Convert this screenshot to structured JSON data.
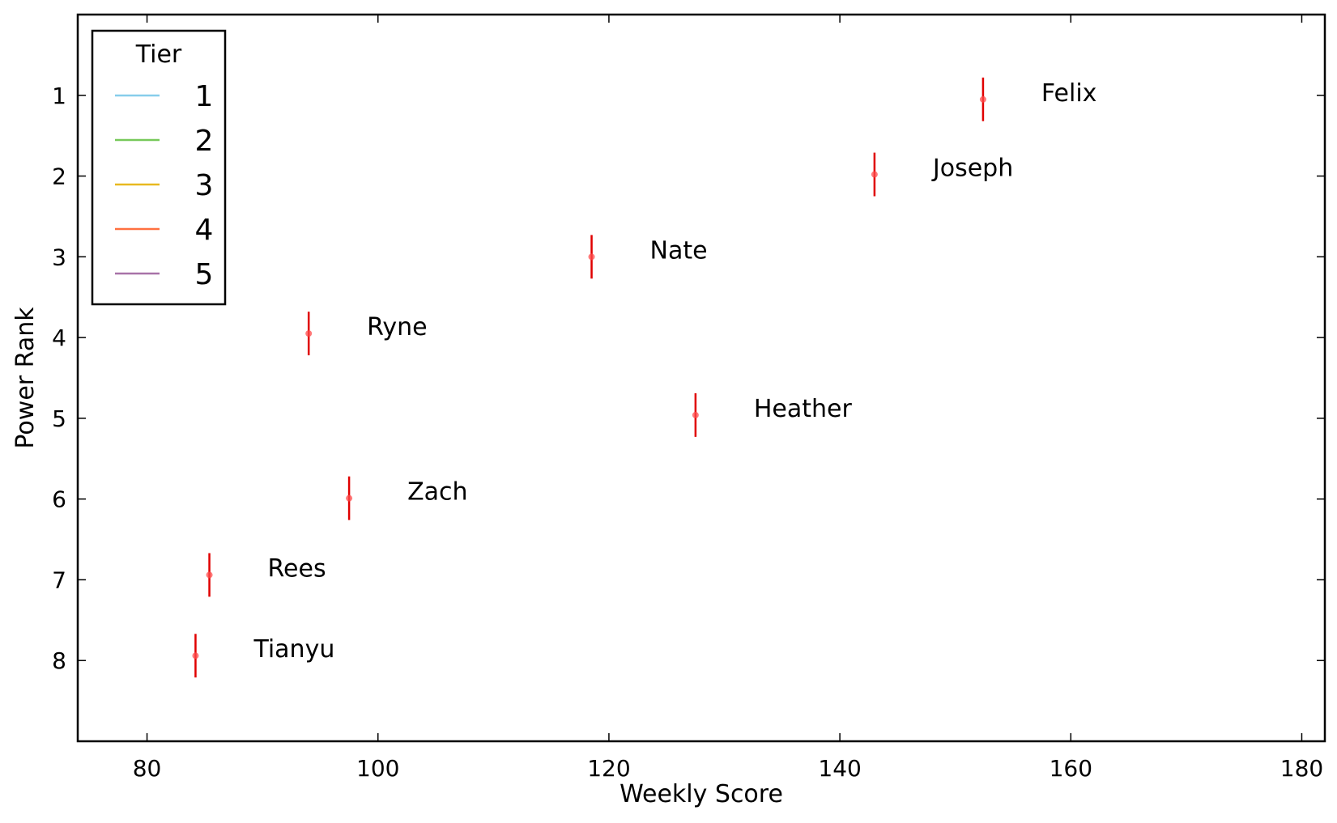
{
  "chart_data": {
    "type": "scatter",
    "title": "",
    "xlabel": "Weekly Score",
    "ylabel": "Power Rank",
    "xlim": [
      74,
      182
    ],
    "ylim": [
      9,
      0
    ],
    "y_inverted": true,
    "xticks": [
      "80",
      "100",
      "120",
      "140",
      "160",
      "180"
    ],
    "xtick_values": [
      80,
      100,
      120,
      140,
      160,
      180
    ],
    "yticks": [
      "1",
      "2",
      "3",
      "4",
      "5",
      "6",
      "7",
      "8"
    ],
    "ytick_values": [
      1,
      2,
      3,
      4,
      5,
      6,
      7,
      8
    ],
    "grid": false,
    "marker_color": "#ff4c4c",
    "errorbar_color": "#e00000",
    "points": [
      {
        "name": "Felix",
        "x": 152.4,
        "y": 1.05,
        "err": 0.27
      },
      {
        "name": "Joseph",
        "x": 143.0,
        "y": 1.98,
        "err": 0.27
      },
      {
        "name": "Nate",
        "x": 118.5,
        "y": 3.0,
        "err": 0.27
      },
      {
        "name": "Ryne",
        "x": 94.0,
        "y": 3.95,
        "err": 0.27
      },
      {
        "name": "Heather",
        "x": 127.5,
        "y": 4.96,
        "err": 0.27
      },
      {
        "name": "Zach",
        "x": 97.5,
        "y": 5.99,
        "err": 0.27
      },
      {
        "name": "Rees",
        "x": 85.4,
        "y": 6.94,
        "err": 0.27
      },
      {
        "name": "Tianyu",
        "x": 84.2,
        "y": 7.94,
        "err": 0.27
      }
    ],
    "legend": {
      "title": "Tier",
      "placement": "top-left",
      "entries": [
        {
          "label": "1",
          "color": "#87ceeb"
        },
        {
          "label": "2",
          "color": "#77c95a"
        },
        {
          "label": "3",
          "color": "#e8b920"
        },
        {
          "label": "4",
          "color": "#ff7040"
        },
        {
          "label": "5",
          "color": "#a872a8"
        }
      ]
    }
  }
}
